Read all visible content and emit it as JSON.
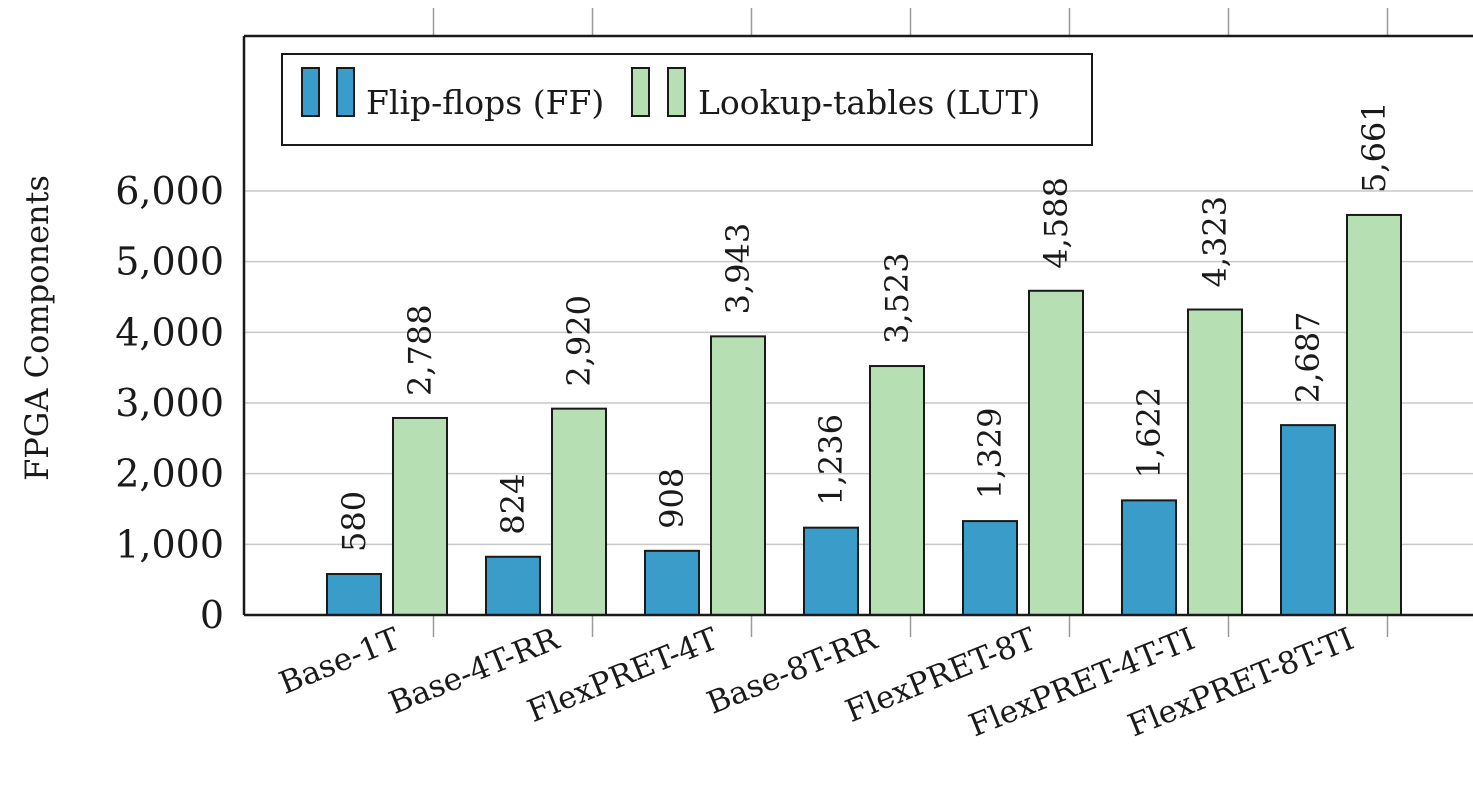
{
  "chart_data": {
    "type": "bar",
    "categories": [
      "Base-1T",
      "Base-4T-RR",
      "FlexPRET-4T",
      "Base-8T-RR",
      "FlexPRET-8T",
      "FlexPRET-4T-TI",
      "FlexPRET-8T-TI"
    ],
    "series": [
      {
        "name": "Flip-flops (FF)",
        "values": [
          580,
          824,
          908,
          1236,
          1329,
          1622,
          2687
        ],
        "color": "#3a9cc8"
      },
      {
        "name": "Lookup-tables (LUT)",
        "values": [
          2788,
          2920,
          3943,
          3523,
          4588,
          4323,
          5661
        ],
        "color": "#b6e0b4"
      }
    ],
    "data_labels": [
      [
        "580",
        "824",
        "908",
        "1,236",
        "1,329",
        "1,622",
        "2,687"
      ],
      [
        "2,788",
        "2,920",
        "3,943",
        "3,523",
        "4,588",
        "4,323",
        "5,661"
      ]
    ],
    "yticks": [
      0,
      1000,
      2000,
      3000,
      4000,
      5000,
      6000
    ],
    "ytick_labels": [
      "0",
      "1,000",
      "2,000",
      "3,000",
      "4,000",
      "5,000",
      "6,000"
    ],
    "ylabel": "FPGA Components",
    "xlabel": "",
    "title": "",
    "grid": true,
    "legend_position": "top-left"
  }
}
